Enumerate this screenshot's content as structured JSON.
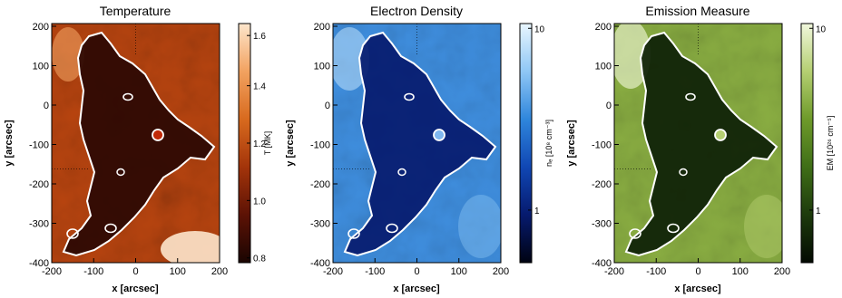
{
  "panels": [
    {
      "id": "temperature",
      "title": "Temperature",
      "xlabel": "x [arcsec]",
      "ylabel": "y [arcsec]",
      "x_ticks": [
        "-200",
        "-100",
        "0",
        "100",
        "200"
      ],
      "y_ticks": [
        "200",
        "100",
        "0",
        "-100",
        "-200",
        "-300",
        "-400"
      ],
      "colorbar_label": "T [MK]",
      "colorbar_ticks": [
        "1.6",
        "1.4",
        "1.2",
        "1.0",
        "0.8"
      ],
      "colormap": [
        "#1a0502",
        "#5c1205",
        "#a3340a",
        "#d86a1e",
        "#f2a260",
        "#fde6cc"
      ]
    },
    {
      "id": "density",
      "title": "Electron Density",
      "xlabel": "x [arcsec]",
      "ylabel": "y [arcsec]",
      "x_ticks": [
        "-200",
        "-100",
        "0",
        "100",
        "200"
      ],
      "y_ticks": [
        "200",
        "100",
        "0",
        "-100",
        "-200",
        "-300",
        "-400"
      ],
      "colorbar_label": "nₑ [10⁸ cm⁻³]",
      "colorbar_ticks": [
        "10",
        "1"
      ],
      "colormap": [
        "#000312",
        "#061a6e",
        "#1047b4",
        "#2f86dc",
        "#8fc7f5",
        "#e9f6ff"
      ]
    },
    {
      "id": "emission",
      "title": "Emission Measure",
      "xlabel": "x [arcsec]",
      "ylabel": "y [arcsec]",
      "x_ticks": [
        "-200",
        "-100",
        "0",
        "100",
        "200"
      ],
      "y_ticks": [
        "200",
        "100",
        "0",
        "-100",
        "-200",
        "-300",
        "-400"
      ],
      "colorbar_label": "EM [10²⁶ cm⁻⁵]",
      "colorbar_ticks": [
        "10",
        "1"
      ],
      "colormap": [
        "#030a02",
        "#1d3a0c",
        "#3f6e17",
        "#6e9a2a",
        "#b5cf72",
        "#f0f7dc"
      ]
    }
  ]
}
